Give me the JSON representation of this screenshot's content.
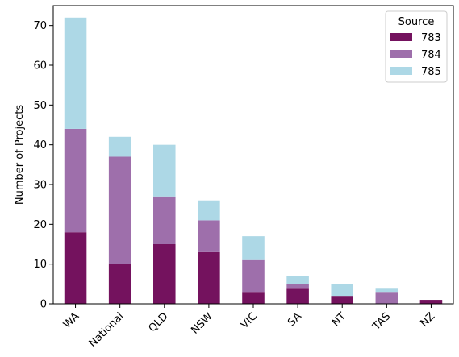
{
  "chart_data": {
    "type": "bar",
    "stacked": true,
    "title": "",
    "xlabel": "",
    "ylabel": "Number of Projects",
    "ylim": [
      0,
      75
    ],
    "yticks": [
      0,
      10,
      20,
      30,
      40,
      50,
      60,
      70
    ],
    "categories": [
      "WA",
      "National",
      "QLD",
      "NSW",
      "VIC",
      "SA",
      "NT",
      "TAS",
      "NZ"
    ],
    "series": [
      {
        "name": "783",
        "color": "#74125e",
        "values": [
          18,
          10,
          15,
          13,
          3,
          4,
          2,
          0,
          1
        ]
      },
      {
        "name": "784",
        "color": "#9e6fab",
        "values": [
          26,
          27,
          12,
          8,
          8,
          1,
          0,
          3,
          0
        ]
      },
      {
        "name": "785",
        "color": "#add8e6",
        "values": [
          28,
          5,
          13,
          5,
          6,
          2,
          3,
          1,
          0
        ]
      }
    ],
    "legend": {
      "title": "Source",
      "placement": "top-right"
    },
    "grid": false
  }
}
